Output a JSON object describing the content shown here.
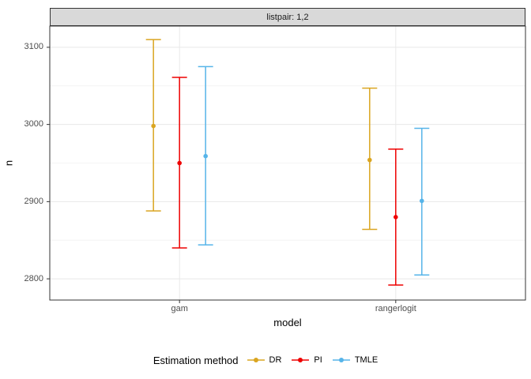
{
  "facet": {
    "label": "listpair: 1,2"
  },
  "colors": {
    "strip_bg": "#D9D9D9",
    "panel_border": "#333333",
    "grid_major": "#E8E8E8",
    "grid_minor": "#F4F4F4",
    "tick_mark": "#333333",
    "tick_label": "#4D4D4D",
    "axis_title": "#000000"
  },
  "chart_data": {
    "type": "pointrange",
    "facet_label": "listpair: 1,2",
    "xlabel": "model",
    "ylabel": "n",
    "categories": [
      "gam",
      "rangerlogit"
    ],
    "y_major_ticks": [
      2800,
      2900,
      3000,
      3100
    ],
    "y_minor_ticks": [
      2850,
      2950,
      3050
    ],
    "ylim": [
      2772.5,
      3127.5
    ],
    "grid": true,
    "legend_title": "Estimation method",
    "legend_position": "bottom",
    "series": [
      {
        "name": "DR",
        "color": "#DAA520",
        "points": [
          {
            "category": "gam",
            "mid": 2998,
            "lo": 2888,
            "hi": 3110
          },
          {
            "category": "rangerlogit",
            "mid": 2954,
            "lo": 2864,
            "hi": 3047
          }
        ]
      },
      {
        "name": "PI",
        "color": "#EE0000",
        "points": [
          {
            "category": "gam",
            "mid": 2950,
            "lo": 2840,
            "hi": 3061
          },
          {
            "category": "rangerlogit",
            "mid": 2880,
            "lo": 2792,
            "hi": 2968
          }
        ]
      },
      {
        "name": "TMLE",
        "color": "#56B4E9",
        "points": [
          {
            "category": "gam",
            "mid": 2959,
            "lo": 2844,
            "hi": 3075
          },
          {
            "category": "rangerlogit",
            "mid": 2901,
            "lo": 2805,
            "hi": 2995
          }
        ]
      }
    ]
  }
}
